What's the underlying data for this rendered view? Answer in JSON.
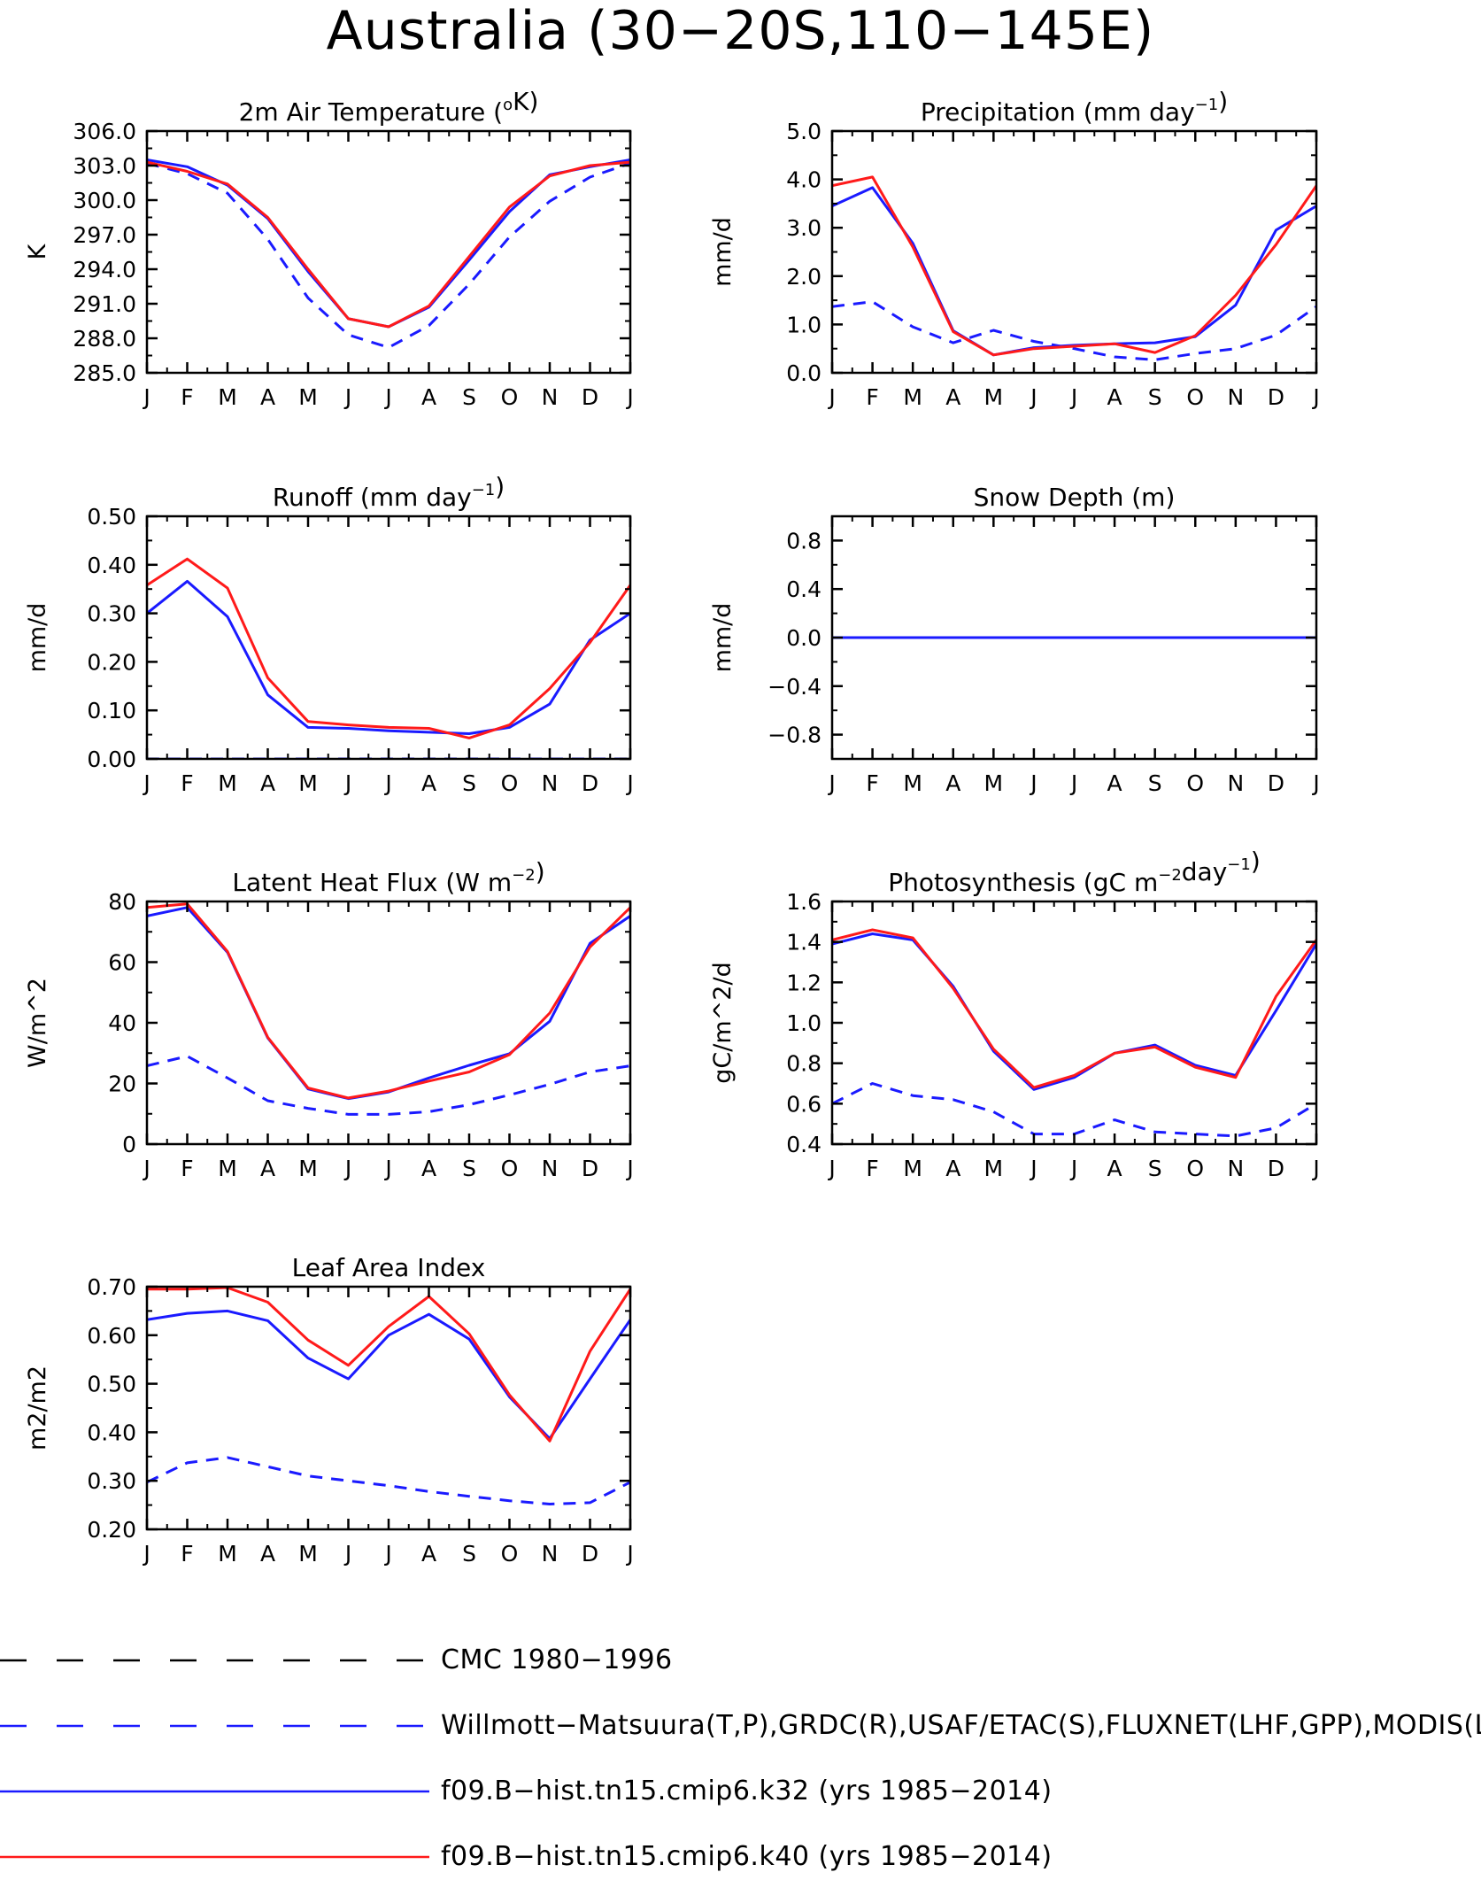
{
  "title": "Australia (30−20S,110−145E)",
  "months": [
    "J",
    "F",
    "M",
    "A",
    "M",
    "J",
    "J",
    "A",
    "S",
    "O",
    "N",
    "D",
    "J"
  ],
  "colors": {
    "obs_cmc": "#000000",
    "obs": "#1a1aff",
    "k32": "#1a1aff",
    "k40": "#ff1a1a"
  },
  "legend": [
    {
      "label": "CMC 1980−1996",
      "color": "#000000",
      "style": "dashed"
    },
    {
      "label": "Willmott−Matsuura(T,P),GRDC(R),USAF/ETAC(S),FLUXNET(LHF,GPP),MODIS(L",
      "color": "#1a1aff",
      "style": "dashed"
    },
    {
      "label": "f09.B−hist.tn15.cmip6.k32 (yrs 1985−2014)",
      "color": "#1a1aff",
      "style": "solid"
    },
    {
      "label": "f09.B−hist.tn15.cmip6.k40 (yrs 1985−2014)",
      "color": "#ff1a1a",
      "style": "solid"
    }
  ],
  "chart_data": [
    {
      "type": "line",
      "title_main": "2m Air Temperature (",
      "title_sup": "o",
      "title_end": "K)",
      "ylabel": "K",
      "ylim": [
        285,
        306
      ],
      "yticks": [
        285,
        288,
        291,
        294,
        297,
        300,
        303,
        306
      ],
      "ytick_labels": [
        "285.0",
        "288.0",
        "291.0",
        "294.0",
        "297.0",
        "300.0",
        "303.0",
        "306.0"
      ],
      "series": [
        {
          "key": "obs",
          "style": "dashed",
          "values": [
            303.2,
            302.3,
            300.6,
            296.6,
            291.5,
            288.3,
            287.2,
            289.1,
            292.7,
            296.8,
            299.9,
            302.0,
            303.2
          ]
        },
        {
          "key": "k32",
          "style": "solid",
          "values": [
            303.5,
            302.9,
            301.3,
            298.4,
            293.8,
            289.7,
            289.0,
            290.7,
            294.8,
            299.0,
            302.2,
            302.9,
            303.5
          ]
        },
        {
          "key": "k40",
          "style": "solid",
          "values": [
            303.3,
            302.5,
            301.4,
            298.5,
            294.0,
            289.7,
            289.0,
            290.8,
            295.1,
            299.4,
            302.1,
            303.0,
            303.3
          ]
        }
      ]
    },
    {
      "type": "line",
      "title_main": "Precipitation (mm day",
      "title_sup": "−1",
      "title_end": ")",
      "ylabel": "mm/d",
      "ylim": [
        0,
        5
      ],
      "yticks": [
        0,
        1,
        2,
        3,
        4,
        5
      ],
      "ytick_labels": [
        "0.0",
        "1.0",
        "2.0",
        "3.0",
        "4.0",
        "5.0"
      ],
      "series": [
        {
          "key": "obs",
          "style": "dashed",
          "values": [
            1.37,
            1.47,
            0.95,
            0.62,
            0.88,
            0.65,
            0.5,
            0.33,
            0.27,
            0.4,
            0.5,
            0.78,
            1.37
          ]
        },
        {
          "key": "k32",
          "style": "solid",
          "values": [
            3.45,
            3.83,
            2.68,
            0.87,
            0.37,
            0.52,
            0.57,
            0.6,
            0.62,
            0.75,
            1.4,
            2.95,
            3.45
          ]
        },
        {
          "key": "k40",
          "style": "solid",
          "values": [
            3.87,
            4.05,
            2.6,
            0.85,
            0.37,
            0.5,
            0.55,
            0.6,
            0.42,
            0.77,
            1.6,
            2.65,
            3.87
          ]
        }
      ]
    },
    {
      "type": "line",
      "title_main": "Runoff (mm day",
      "title_sup": "−1",
      "title_end": ")",
      "ylabel": "mm/d",
      "ylim": [
        0,
        0.5
      ],
      "yticks": [
        0,
        0.1,
        0.2,
        0.3,
        0.4,
        0.5
      ],
      "ytick_labels": [
        "0.00",
        "0.10",
        "0.20",
        "0.30",
        "0.40",
        "0.50"
      ],
      "series": [
        {
          "key": "obs",
          "style": "dashed",
          "values": [
            0,
            0,
            0,
            0,
            0,
            0,
            0,
            0,
            0,
            0,
            0,
            0,
            0
          ]
        },
        {
          "key": "k32",
          "style": "solid",
          "values": [
            0.3,
            0.366,
            0.293,
            0.132,
            0.065,
            0.063,
            0.058,
            0.055,
            0.052,
            0.065,
            0.113,
            0.245,
            0.3
          ]
        },
        {
          "key": "k40",
          "style": "solid",
          "values": [
            0.358,
            0.412,
            0.352,
            0.167,
            0.077,
            0.07,
            0.065,
            0.063,
            0.043,
            0.07,
            0.145,
            0.24,
            0.358
          ]
        }
      ]
    },
    {
      "type": "line",
      "title_main": "Snow Depth (m)",
      "title_sup": "",
      "title_end": "",
      "ylabel": "mm/d",
      "ylim": [
        -1,
        1
      ],
      "yticks": [
        -0.8,
        -0.4,
        0,
        0.4,
        0.8
      ],
      "ytick_labels": [
        "−0.8",
        "−0.4",
        "0.0",
        "0.4",
        "0.8"
      ],
      "series": [
        {
          "key": "k40",
          "style": "solid",
          "values": [
            0,
            0,
            0,
            0,
            0,
            0,
            0,
            0,
            0,
            0,
            0,
            0,
            0
          ]
        },
        {
          "key": "k32",
          "style": "solid",
          "values": [
            0,
            0,
            0,
            0,
            0,
            0,
            0,
            0,
            0,
            0,
            0,
            0,
            0
          ]
        },
        {
          "key": "obs",
          "style": "dashed",
          "values": [
            0,
            0,
            0,
            0,
            0,
            0,
            0,
            0,
            0,
            0,
            0,
            0,
            0
          ]
        }
      ]
    },
    {
      "type": "line",
      "title_main": "Latent Heat Flux (W m",
      "title_sup": "−2",
      "title_end": ")",
      "ylabel": "W/m^2",
      "ylim": [
        0,
        80
      ],
      "yticks": [
        0,
        20,
        40,
        60,
        80
      ],
      "ytick_labels": [
        "0",
        "20",
        "40",
        "60",
        "80"
      ],
      "series": [
        {
          "key": "obs",
          "style": "dashed",
          "values": [
            25.8,
            29.0,
            21.8,
            14.3,
            11.8,
            9.8,
            9.8,
            10.7,
            13.0,
            16.2,
            19.7,
            23.8,
            25.8
          ]
        },
        {
          "key": "k32",
          "style": "solid",
          "values": [
            75.2,
            78.0,
            63.2,
            35.0,
            18.2,
            15.0,
            17.2,
            21.8,
            26.0,
            29.8,
            40.5,
            66.2,
            75.2
          ]
        },
        {
          "key": "k40",
          "style": "solid",
          "values": [
            78.0,
            79.2,
            63.5,
            35.2,
            18.5,
            15.2,
            17.5,
            20.8,
            23.8,
            29.5,
            43.2,
            65.0,
            78.0
          ]
        }
      ]
    },
    {
      "type": "line",
      "title_main": "Photosynthesis (gC m",
      "title_sup": "−2",
      "title_end": "day",
      "title_sup2": "−1",
      "title_end2": ")",
      "ylabel": "gC/m^2/d",
      "ylim": [
        0.4,
        1.6
      ],
      "yticks": [
        0.4,
        0.6,
        0.8,
        1.0,
        1.2,
        1.4,
        1.6
      ],
      "ytick_labels": [
        "0.4",
        "0.6",
        "0.8",
        "1.0",
        "1.2",
        "1.4",
        "1.6"
      ],
      "series": [
        {
          "key": "obs",
          "style": "dashed",
          "values": [
            0.6,
            0.7,
            0.64,
            0.62,
            0.56,
            0.45,
            0.45,
            0.52,
            0.46,
            0.45,
            0.44,
            0.48,
            0.6
          ]
        },
        {
          "key": "k32",
          "style": "solid",
          "values": [
            1.39,
            1.44,
            1.41,
            1.18,
            0.86,
            0.67,
            0.73,
            0.85,
            0.89,
            0.79,
            0.74,
            1.06,
            1.39
          ]
        },
        {
          "key": "k40",
          "style": "solid",
          "values": [
            1.41,
            1.46,
            1.42,
            1.17,
            0.87,
            0.68,
            0.74,
            0.85,
            0.88,
            0.78,
            0.73,
            1.13,
            1.41
          ]
        }
      ]
    },
    {
      "type": "line",
      "title_main": "Leaf Area Index",
      "title_sup": "",
      "title_end": "",
      "ylabel": "m2/m2",
      "ylim": [
        0.2,
        0.7
      ],
      "yticks": [
        0.2,
        0.3,
        0.4,
        0.5,
        0.6,
        0.7
      ],
      "ytick_labels": [
        "0.20",
        "0.30",
        "0.40",
        "0.50",
        "0.60",
        "0.70"
      ],
      "series": [
        {
          "key": "obs",
          "style": "dashed",
          "values": [
            0.297,
            0.337,
            0.348,
            0.329,
            0.31,
            0.3,
            0.29,
            0.278,
            0.268,
            0.259,
            0.252,
            0.255,
            0.297
          ]
        },
        {
          "key": "k32",
          "style": "solid",
          "values": [
            0.632,
            0.645,
            0.65,
            0.63,
            0.553,
            0.51,
            0.6,
            0.643,
            0.592,
            0.473,
            0.387,
            0.51,
            0.632
          ]
        },
        {
          "key": "k40",
          "style": "solid",
          "values": [
            0.695,
            0.695,
            0.698,
            0.668,
            0.59,
            0.538,
            0.618,
            0.68,
            0.603,
            0.477,
            0.382,
            0.567,
            0.695
          ]
        }
      ]
    }
  ]
}
